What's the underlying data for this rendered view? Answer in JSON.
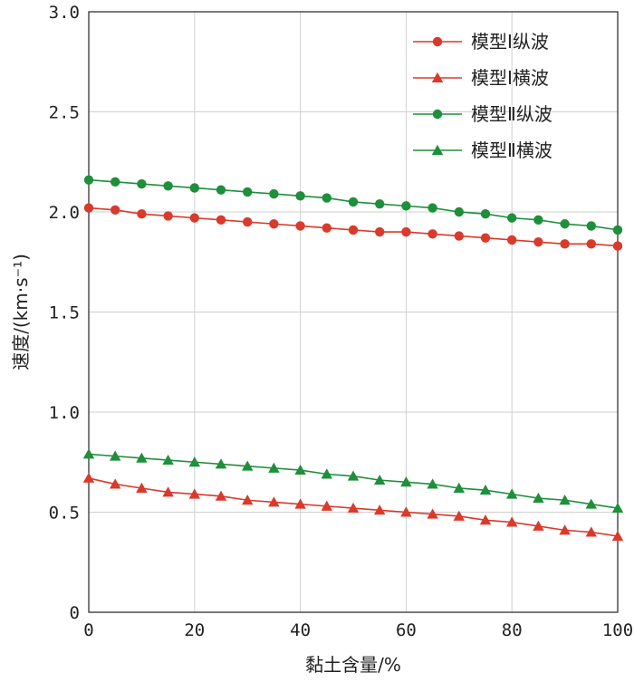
{
  "chart_data": {
    "type": "line",
    "xlabel": "黏土含量/%",
    "ylabel": "速度/(km·s⁻¹)",
    "xlim": [
      0,
      100
    ],
    "ylim": [
      0,
      3.0
    ],
    "xticks": [
      "0",
      "20",
      "40",
      "60",
      "80",
      "100"
    ],
    "yticks": [
      "0",
      "0.5",
      "1.0",
      "1.5",
      "2.0",
      "2.5",
      "3.0"
    ],
    "grid": true,
    "legend_position": "top-right",
    "x": [
      0,
      5,
      10,
      15,
      20,
      25,
      30,
      35,
      40,
      45,
      50,
      55,
      60,
      65,
      70,
      75,
      80,
      85,
      90,
      95,
      100
    ],
    "series": [
      {
        "name": "模型Ⅰ纵波",
        "color": "#d93a2b",
        "marker": "circle",
        "values": [
          2.02,
          2.01,
          1.99,
          1.98,
          1.97,
          1.96,
          1.95,
          1.94,
          1.93,
          1.92,
          1.91,
          1.9,
          1.9,
          1.89,
          1.88,
          1.87,
          1.86,
          1.85,
          1.84,
          1.84,
          1.83
        ]
      },
      {
        "name": "模型Ⅰ横波",
        "color": "#d93a2b",
        "marker": "triangle",
        "values": [
          0.67,
          0.64,
          0.62,
          0.6,
          0.59,
          0.58,
          0.56,
          0.55,
          0.54,
          0.53,
          0.52,
          0.51,
          0.5,
          0.49,
          0.48,
          0.46,
          0.45,
          0.43,
          0.41,
          0.4,
          0.38
        ]
      },
      {
        "name": "模型Ⅱ纵波",
        "color": "#1e8f3a",
        "marker": "circle",
        "values": [
          2.16,
          2.15,
          2.14,
          2.13,
          2.12,
          2.11,
          2.1,
          2.09,
          2.08,
          2.07,
          2.05,
          2.04,
          2.03,
          2.02,
          2.0,
          1.99,
          1.97,
          1.96,
          1.94,
          1.93,
          1.91
        ]
      },
      {
        "name": "模型Ⅱ横波",
        "color": "#1e8f3a",
        "marker": "triangle",
        "values": [
          0.79,
          0.78,
          0.77,
          0.76,
          0.75,
          0.74,
          0.73,
          0.72,
          0.71,
          0.69,
          0.68,
          0.66,
          0.65,
          0.64,
          0.62,
          0.61,
          0.59,
          0.57,
          0.56,
          0.54,
          0.52
        ]
      }
    ]
  }
}
